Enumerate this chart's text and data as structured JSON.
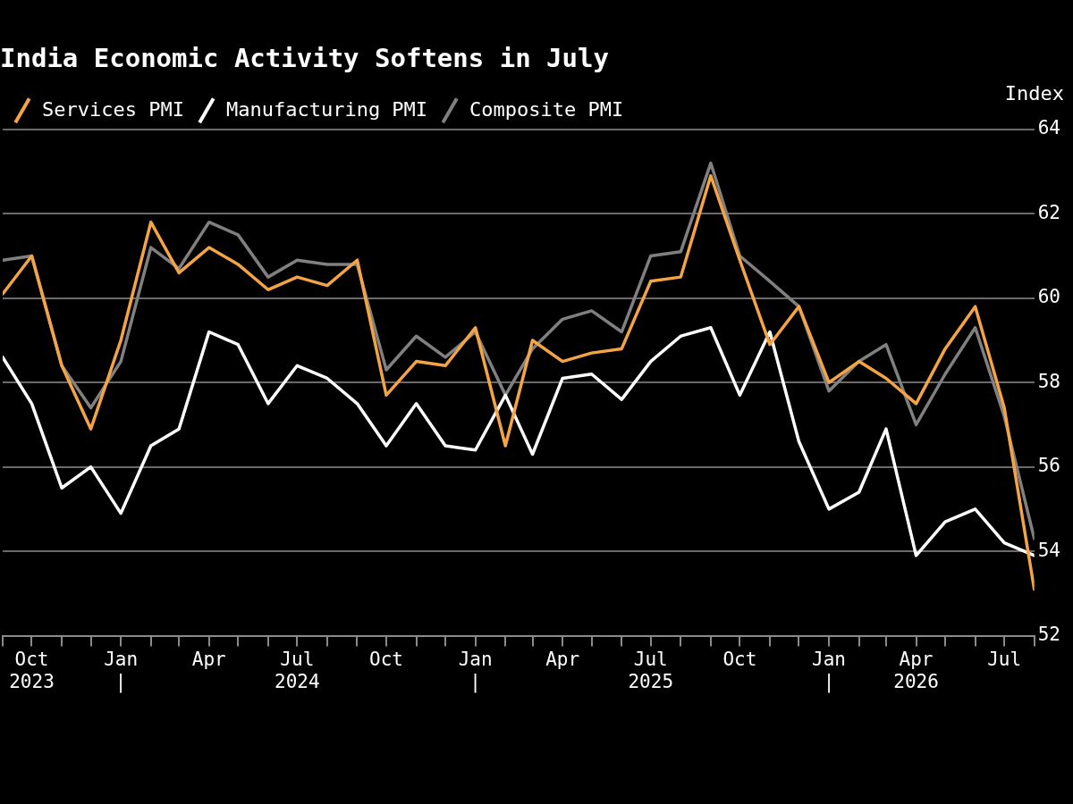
{
  "chart_data": {
    "type": "line",
    "title": "India Economic Activity Softens in July",
    "ylabel": "Index",
    "x": [
      "2023-09",
      "2023-10",
      "2023-11",
      "2023-12",
      "2024-01",
      "2024-02",
      "2024-03",
      "2024-04",
      "2024-05",
      "2024-06",
      "2024-07",
      "2024-08",
      "2024-09",
      "2024-10",
      "2024-11",
      "2024-12",
      "2025-01",
      "2025-02",
      "2025-03",
      "2025-04",
      "2025-05",
      "2025-06",
      "2025-07",
      "2025-08",
      "2025-09",
      "2025-10",
      "2025-11",
      "2025-12",
      "2026-01",
      "2026-02",
      "2026-03",
      "2026-04",
      "2026-05",
      "2026-06",
      "2026-07",
      "2026-08"
    ],
    "series": [
      {
        "name": "Services PMI",
        "color": "#f5a445",
        "values": [
          60.1,
          61.0,
          58.4,
          56.9,
          59.0,
          61.8,
          60.6,
          61.2,
          60.8,
          60.2,
          60.5,
          60.3,
          60.9,
          57.7,
          58.5,
          58.4,
          59.3,
          56.5,
          59.0,
          58.5,
          58.7,
          58.8,
          60.4,
          60.5,
          62.9,
          60.9,
          58.9,
          59.8,
          58.0,
          58.5,
          58.1,
          57.5,
          58.8,
          59.8,
          57.4,
          53.1
        ]
      },
      {
        "name": "Manufacturing PMI",
        "color": "#ffffff",
        "values": [
          58.6,
          57.5,
          55.5,
          56.0,
          54.9,
          56.5,
          56.9,
          59.2,
          58.9,
          57.5,
          58.4,
          58.1,
          57.5,
          56.5,
          57.5,
          56.5,
          56.4,
          57.7,
          56.3,
          58.1,
          58.2,
          57.6,
          58.5,
          59.1,
          59.3,
          57.7,
          59.2,
          56.6,
          55.0,
          55.4,
          56.9,
          53.9,
          54.7,
          55.0,
          54.2,
          53.9
        ]
      },
      {
        "name": "Composite PMI",
        "color": "#808080",
        "values": [
          60.9,
          61.0,
          58.4,
          57.4,
          58.5,
          61.2,
          60.7,
          61.8,
          61.5,
          60.5,
          60.9,
          60.8,
          60.8,
          58.3,
          59.1,
          58.6,
          59.2,
          57.7,
          58.8,
          59.5,
          59.7,
          59.2,
          61.0,
          61.1,
          63.2,
          61.0,
          60.4,
          59.8,
          57.8,
          58.5,
          58.9,
          57.0,
          58.2,
          59.3,
          57.2,
          54.3
        ]
      }
    ],
    "xlim": [
      "2023-09",
      "2026-08"
    ],
    "xticks": [
      {
        "value": "2023-09",
        "label": null
      },
      {
        "value": "2023-10",
        "label": "Oct\n2023"
      },
      {
        "value": "2023-11",
        "label": null
      },
      {
        "value": "2023-12",
        "label": null
      },
      {
        "value": "2024-01",
        "label": "Jan\n|"
      },
      {
        "value": "2024-02",
        "label": null
      },
      {
        "value": "2024-03",
        "label": null
      },
      {
        "value": "2024-04",
        "label": "Apr"
      },
      {
        "value": "2024-05",
        "label": null
      },
      {
        "value": "2024-06",
        "label": null
      },
      {
        "value": "2024-07",
        "label": "Jul\n2024"
      },
      {
        "value": "2024-08",
        "label": null
      },
      {
        "value": "2024-09",
        "label": null
      },
      {
        "value": "2024-10",
        "label": "Oct"
      },
      {
        "value": "2024-11",
        "label": null
      },
      {
        "value": "2024-12",
        "label": null
      },
      {
        "value": "2025-01",
        "label": "Jan\n|"
      },
      {
        "value": "2025-02",
        "label": null
      },
      {
        "value": "2025-03",
        "label": null
      },
      {
        "value": "2025-04",
        "label": "Apr"
      },
      {
        "value": "2025-05",
        "label": null
      },
      {
        "value": "2025-06",
        "label": null
      },
      {
        "value": "2025-07",
        "label": "Jul\n2025"
      },
      {
        "value": "2025-08",
        "label": null
      },
      {
        "value": "2025-09",
        "label": null
      },
      {
        "value": "2025-10",
        "label": "Oct"
      },
      {
        "value": "2025-11",
        "label": null
      },
      {
        "value": "2025-12",
        "label": null
      },
      {
        "value": "2026-01",
        "label": "Jan\n|"
      },
      {
        "value": "2026-02",
        "label": null
      },
      {
        "value": "2026-03",
        "label": null
      },
      {
        "value": "2026-04",
        "label": "Apr\n2026"
      },
      {
        "value": "2026-05",
        "label": null
      },
      {
        "value": "2026-06",
        "label": null
      },
      {
        "value": "2026-07",
        "label": "Jul"
      },
      {
        "value": "2026-08",
        "label": null
      }
    ],
    "ylim": [
      52,
      64
    ],
    "yticks": [
      52,
      54,
      56,
      58,
      60,
      62,
      64
    ],
    "grid": "y",
    "legend": "top left",
    "marker": "none",
    "line_style": "solid"
  }
}
